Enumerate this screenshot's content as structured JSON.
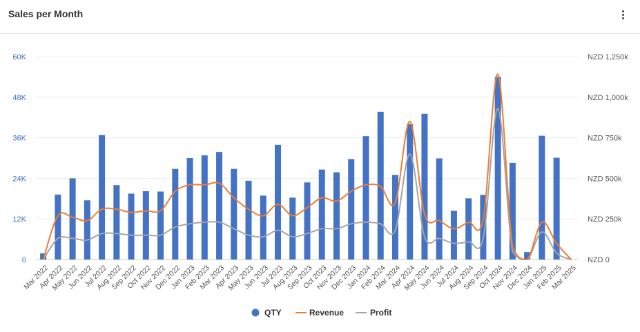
{
  "header": {
    "title": "Sales per Month",
    "menu_icon": "more-vertical-icon"
  },
  "colors": {
    "qty": "#4472C4",
    "revenue": "#ED7D31",
    "profit": "#A5A5A5",
    "left_axis_text": "#3F6FC4",
    "axis_text": "#555555"
  },
  "chart_data": {
    "type": "bar",
    "categories": [
      "Mar 2022",
      "Apr 2022",
      "May 2022",
      "Jun 2022",
      "Jul 2022",
      "Aug 2022",
      "Sep 2022",
      "Oct 2022",
      "Nov 2022",
      "Dec 2022",
      "Jan 2023",
      "Feb 2023",
      "Mar 2023",
      "Apr 2023",
      "May 2023",
      "Jun 2023",
      "Jul 2023",
      "Aug 2023",
      "Sep 2023",
      "Oct 2023",
      "Nov 2023",
      "Dec 2023",
      "Jan 2024",
      "Feb 2024",
      "Mar 2024",
      "Apr 2024",
      "May 2024",
      "Jun 2024",
      "Jul 2024",
      "Aug 2024",
      "Sep 2024",
      "Oct 2024",
      "Nov 2024",
      "Dec 2024",
      "Jan 2025",
      "Feb 2025",
      "Mar 2025"
    ],
    "series": [
      {
        "name": "QTY",
        "type": "bar",
        "axis": "left",
        "values": [
          1800,
          19200,
          24000,
          17500,
          36800,
          22000,
          19500,
          20200,
          20100,
          26800,
          30000,
          30800,
          31800,
          26800,
          23300,
          18900,
          33900,
          18300,
          22800,
          26600,
          25800,
          29700,
          36500,
          43700,
          25000,
          40000,
          43100,
          29900,
          14400,
          18100,
          19100,
          54000,
          28600,
          2200,
          36600,
          30100,
          0
        ]
      },
      {
        "name": "Revenue",
        "type": "line",
        "axis": "right",
        "values": [
          0,
          270000,
          260000,
          240000,
          310000,
          310000,
          290000,
          300000,
          300000,
          420000,
          460000,
          460000,
          470000,
          380000,
          310000,
          270000,
          340000,
          270000,
          320000,
          380000,
          360000,
          420000,
          460000,
          450000,
          350000,
          850000,
          280000,
          240000,
          190000,
          230000,
          250000,
          1140000,
          80000,
          0,
          230000,
          100000,
          0
        ]
      },
      {
        "name": "Profit",
        "type": "line",
        "axis": "right",
        "values": [
          0,
          130000,
          130000,
          120000,
          160000,
          160000,
          150000,
          150000,
          150000,
          200000,
          220000,
          230000,
          230000,
          190000,
          150000,
          140000,
          180000,
          140000,
          160000,
          190000,
          190000,
          220000,
          230000,
          220000,
          180000,
          650000,
          140000,
          130000,
          100000,
          110000,
          130000,
          930000,
          50000,
          0,
          170000,
          40000,
          0
        ]
      }
    ],
    "y_left": {
      "ylim": [
        0,
        60000
      ],
      "ticks": [
        0,
        12000,
        24000,
        36000,
        48000,
        60000
      ],
      "tick_labels": [
        "0",
        "12K",
        "24K",
        "36K",
        "48K",
        "60K"
      ]
    },
    "y_right": {
      "ylim": [
        0,
        1250000
      ],
      "ticks": [
        0,
        250000,
        500000,
        750000,
        1000000,
        1250000
      ],
      "tick_labels": [
        "NZD 0",
        "NZD 250k",
        "NZD 500k",
        "NZD 750k",
        "NZD 1,000k",
        "NZD 1,250k"
      ]
    },
    "grid": true,
    "legend_position": "bottom"
  }
}
